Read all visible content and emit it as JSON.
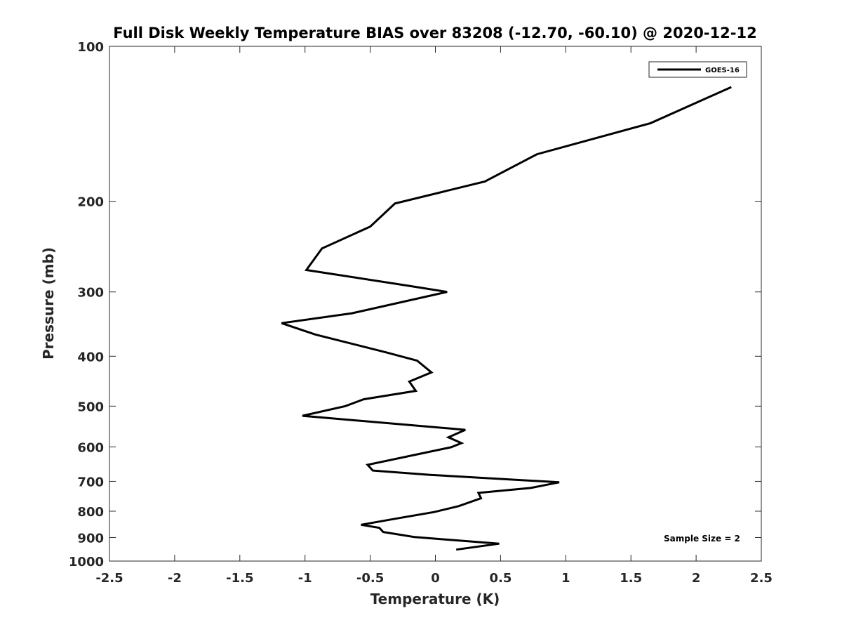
{
  "chart_data": {
    "type": "line",
    "title": "Full Disk Weekly Temperature BIAS over 83208 (-12.70, -60.10) @ 2020-12-12",
    "xlabel": "Temperature (K)",
    "ylabel": "Pressure (mb)",
    "xlim": [
      -2.5,
      2.5
    ],
    "ylim": [
      100,
      1000
    ],
    "yscale": "log",
    "yreversed": true,
    "x_ticks": [
      "-2.5",
      "-2",
      "-1.5",
      "-1",
      "-0.5",
      "0",
      "0.5",
      "1",
      "1.5",
      "2",
      "2.5"
    ],
    "y_ticks": [
      "100",
      "200",
      "300",
      "400",
      "500",
      "600",
      "700",
      "800",
      "900",
      "1000"
    ],
    "grid": false,
    "legend_position": "top-right",
    "series": [
      {
        "name": "GOES-16",
        "color": "#000000",
        "points": [
          [
            2.27,
            120
          ],
          [
            1.65,
            141
          ],
          [
            0.78,
            162
          ],
          [
            0.38,
            183
          ],
          [
            -0.31,
            202
          ],
          [
            -0.5,
            224
          ],
          [
            -0.87,
            247
          ],
          [
            -0.99,
            272
          ],
          [
            -0.2,
            292
          ],
          [
            0.09,
            300
          ],
          [
            -0.64,
            330
          ],
          [
            -1.18,
            345
          ],
          [
            -0.92,
            363
          ],
          [
            -0.38,
            393
          ],
          [
            -0.14,
            408
          ],
          [
            -0.03,
            430
          ],
          [
            -0.2,
            448
          ],
          [
            -0.15,
            467
          ],
          [
            -0.55,
            485
          ],
          [
            -0.69,
            500
          ],
          [
            -1.02,
            522
          ],
          [
            0.23,
            556
          ],
          [
            0.1,
            575
          ],
          [
            0.2,
            590
          ],
          [
            0.12,
            601
          ],
          [
            -0.52,
            650
          ],
          [
            -0.48,
            667
          ],
          [
            -0.04,
            680
          ],
          [
            0.95,
            703
          ],
          [
            0.73,
            721
          ],
          [
            0.33,
            737
          ],
          [
            0.35,
            755
          ],
          [
            0.18,
            782
          ],
          [
            -0.01,
            803
          ],
          [
            -0.28,
            825
          ],
          [
            -0.57,
            850
          ],
          [
            -0.43,
            862
          ],
          [
            -0.4,
            878
          ],
          [
            -0.16,
            898
          ],
          [
            0.49,
            925
          ],
          [
            0.16,
            950
          ]
        ]
      }
    ],
    "annotations": [
      {
        "text": "Sample Size = 2"
      }
    ]
  }
}
